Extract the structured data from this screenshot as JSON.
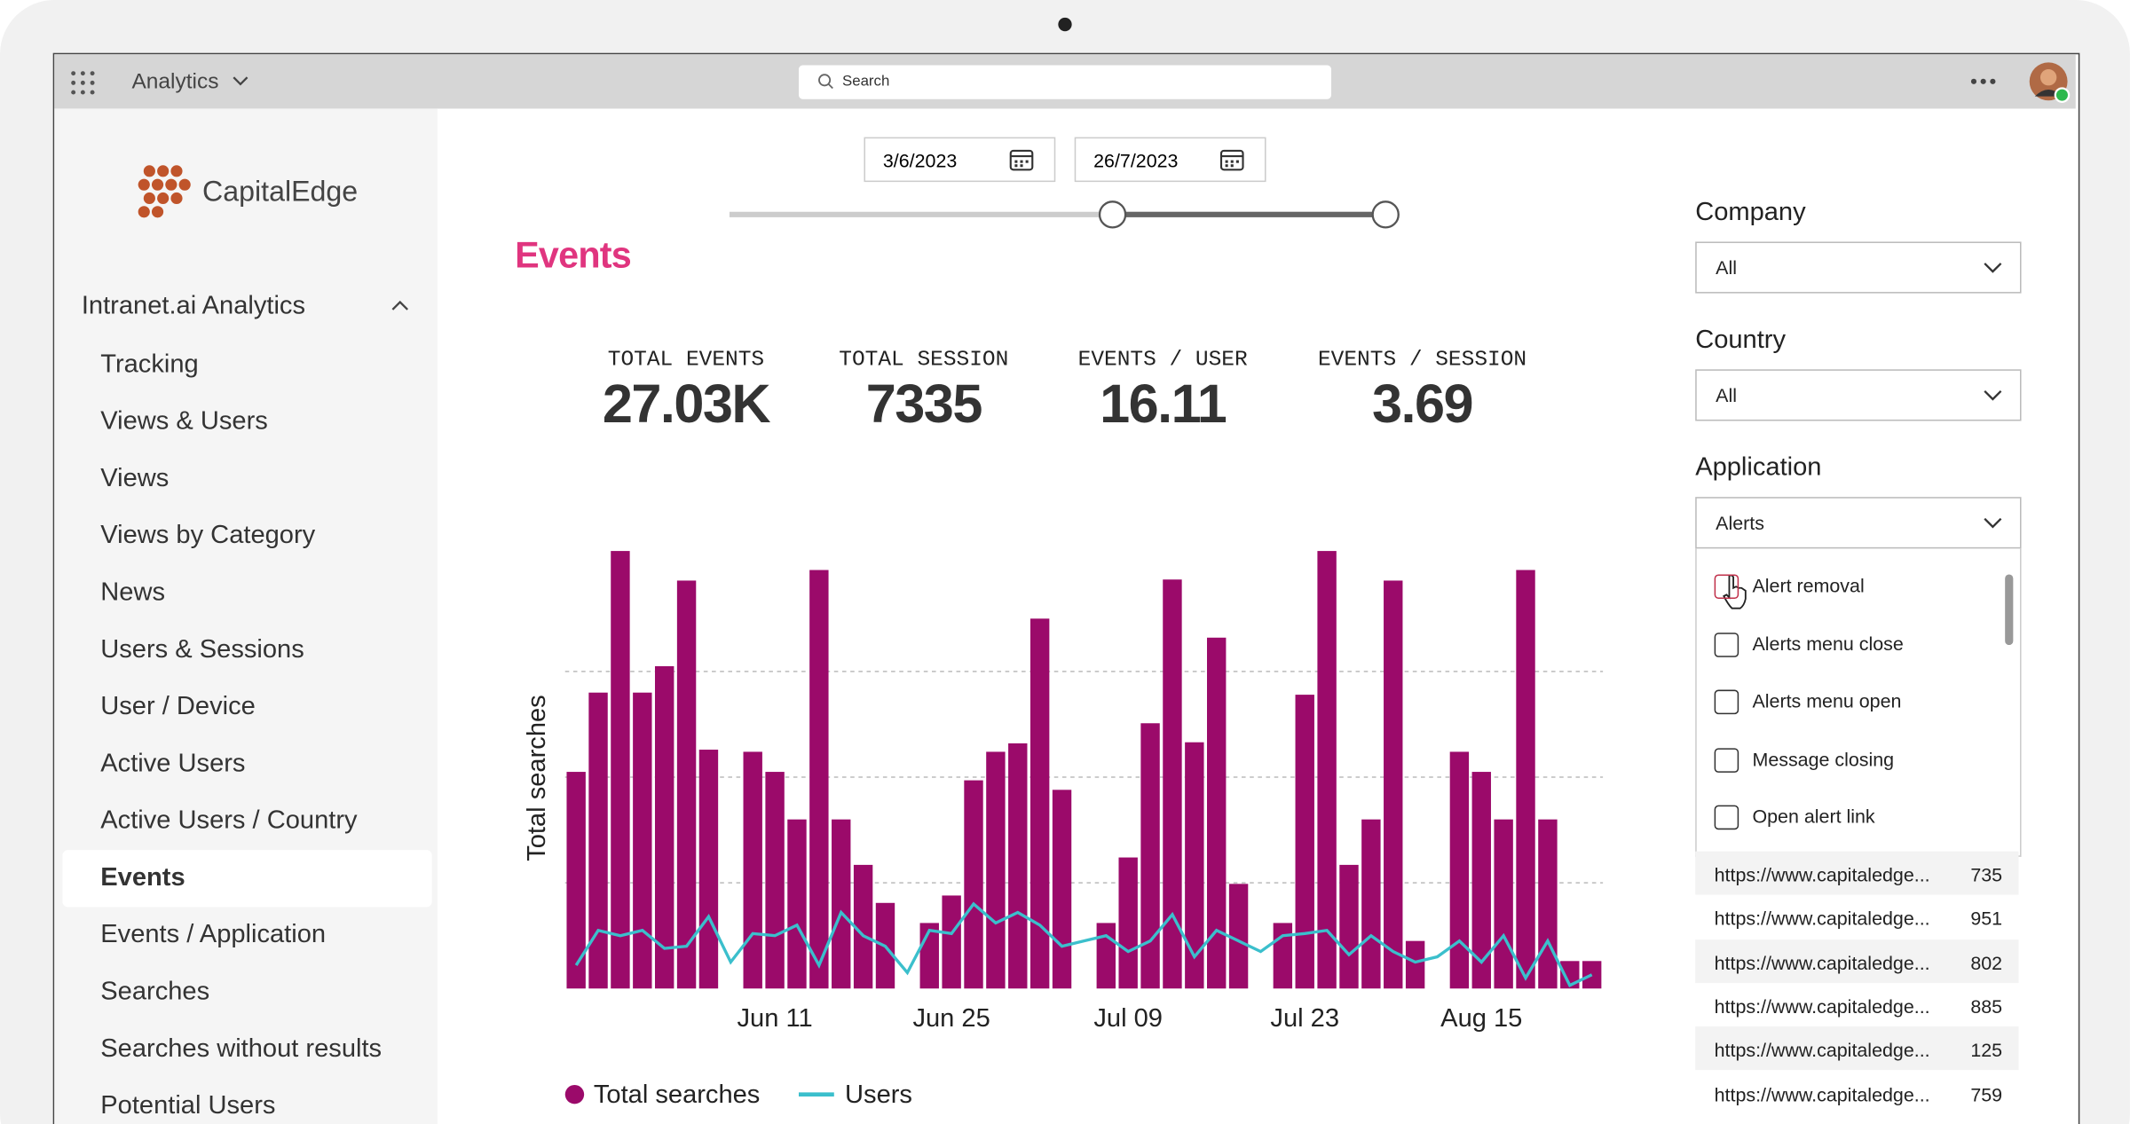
{
  "app_bar": {
    "app": "Analytics",
    "search": "Search"
  },
  "sidebar": {
    "brand": "CapitalEdge",
    "section": "Intranet.ai Analytics",
    "items": [
      "Tracking",
      "Views & Users",
      "Views",
      "Views by Category",
      "News",
      "Users & Sessions",
      "User / Device",
      "Active Users",
      "Active Users / Country",
      "Events",
      "Events / Application",
      "Searches",
      "Searches without results",
      "Potential Users"
    ],
    "selected": "Events"
  },
  "date_range": {
    "start": "3/6/2023",
    "end": "26/7/2023"
  },
  "page_title": "Events",
  "kpis": [
    {
      "label": "TOTAL EVENTS",
      "value": "27.03K"
    },
    {
      "label": "TOTAL SESSION",
      "value": "7335"
    },
    {
      "label": "EVENTS / USER",
      "value": "16.11"
    },
    {
      "label": "EVENTS / SESSION",
      "value": "3.69"
    }
  ],
  "filters": {
    "company": {
      "label": "Company",
      "value": "All"
    },
    "country": {
      "label": "Country",
      "value": "All"
    },
    "application": {
      "label": "Application",
      "value": "Alerts",
      "options": [
        "Alert removal",
        "Alerts menu close",
        "Alerts menu open",
        "Message closing",
        "Open alert link"
      ]
    }
  },
  "table": {
    "rows": [
      [
        "https://www.capitaledge...",
        "735"
      ],
      [
        "https://www.capitaledge...",
        "951"
      ],
      [
        "https://www.capitaledge...",
        "802"
      ],
      [
        "https://www.capitaledge...",
        "885"
      ],
      [
        "https://www.capitaledge...",
        "125"
      ],
      [
        "https://www.capitaledge...",
        "759"
      ]
    ]
  },
  "chart_data": {
    "type": "bar",
    "y_label": "Total searches",
    "categories": [
      null,
      null,
      null,
      null,
      null,
      null,
      null,
      null,
      null,
      "Jun 11",
      null,
      null,
      null,
      null,
      null,
      null,
      null,
      "Jun 25",
      null,
      null,
      null,
      null,
      null,
      null,
      null,
      "Jul 09",
      null,
      null,
      null,
      null,
      null,
      null,
      null,
      "Jul 23",
      null,
      null,
      null,
      null,
      null,
      null,
      null,
      "Aug 15",
      null,
      null,
      null,
      null,
      null
    ],
    "series": [
      {
        "name": "Total searches",
        "color": "#9b0a6a",
        "values": [
          2.05,
          2.8,
          4.14,
          2.8,
          3.05,
          3.86,
          2.26,
          null,
          2.24,
          2.05,
          1.6,
          3.96,
          1.6,
          1.17,
          0.81,
          null,
          0.62,
          0.88,
          1.97,
          2.24,
          2.32,
          3.5,
          1.88,
          null,
          0.62,
          1.24,
          2.51,
          3.87,
          2.33,
          3.32,
          0.99,
          null,
          0.62,
          2.78,
          4.14,
          1.17,
          1.6,
          3.86,
          0.45,
          null,
          2.24,
          2.05,
          1.6,
          3.96,
          1.6,
          0.26,
          0.26
        ]
      },
      {
        "name": "Users",
        "type": "line",
        "color": "#3bbfcc",
        "values": [
          0.22,
          0.55,
          0.5,
          0.55,
          0.38,
          0.4,
          0.68,
          0.25,
          0.52,
          0.5,
          0.6,
          0.22,
          0.72,
          0.5,
          0.4,
          0.15,
          0.55,
          0.52,
          0.8,
          0.62,
          0.72,
          0.6,
          0.4,
          0.45,
          0.5,
          0.35,
          0.45,
          0.7,
          0.3,
          0.55,
          0.45,
          0.35,
          0.5,
          0.52,
          0.55,
          0.32,
          0.5,
          0.35,
          0.25,
          0.3,
          0.45,
          0.25,
          0.5,
          0.1,
          0.45,
          0.03,
          0.13
        ]
      }
    ],
    "ylim": [
      0,
      4.15
    ],
    "yticks": [
      1,
      2,
      3
    ],
    "grid": true,
    "legend": "bottom"
  }
}
